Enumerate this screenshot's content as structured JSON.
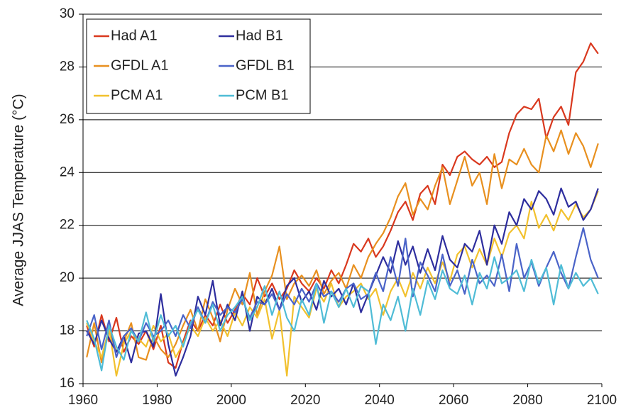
{
  "chart_data": {
    "type": "line",
    "y_label": "Average JJAS Temperature (°C)",
    "x": [
      1961,
      1963,
      1965,
      1967,
      1969,
      1971,
      1973,
      1975,
      1977,
      1979,
      1981,
      1983,
      1985,
      1987,
      1989,
      1991,
      1993,
      1995,
      1997,
      1999,
      2001,
      2003,
      2005,
      2007,
      2009,
      2011,
      2013,
      2015,
      2017,
      2019,
      2021,
      2023,
      2025,
      2027,
      2029,
      2031,
      2033,
      2035,
      2037,
      2039,
      2041,
      2043,
      2045,
      2047,
      2049,
      2051,
      2053,
      2055,
      2057,
      2059,
      2061,
      2063,
      2065,
      2067,
      2069,
      2071,
      2073,
      2075,
      2077,
      2079,
      2081,
      2083,
      2085,
      2087,
      2089,
      2091,
      2093,
      2095,
      2097,
      2099
    ],
    "series": [
      {
        "name": "Had A1",
        "color": "#d9381e",
        "values": [
          18.2,
          17.4,
          18.6,
          17.6,
          18.5,
          17.2,
          17.8,
          17.5,
          18.0,
          17.3,
          18.2,
          16.8,
          16.6,
          17.6,
          18.4,
          18.0,
          18.6,
          18.2,
          19.0,
          18.3,
          18.8,
          19.4,
          19.0,
          20.0,
          19.3,
          19.8,
          19.2,
          19.6,
          20.3,
          19.8,
          19.5,
          20.0,
          19.6,
          20.3,
          19.8,
          20.5,
          21.3,
          21.0,
          21.5,
          20.8,
          21.2,
          21.8,
          22.5,
          22.9,
          22.2,
          23.2,
          23.5,
          22.8,
          24.3,
          23.9,
          24.6,
          24.8,
          24.5,
          24.3,
          24.6,
          24.2,
          24.4,
          25.5,
          26.2,
          26.5,
          26.4,
          26.8,
          25.3,
          26.1,
          26.5,
          25.8,
          27.8,
          28.2,
          28.9,
          28.5
        ]
      },
      {
        "name": "GFDL A1",
        "color": "#e8901f",
        "values": [
          17.0,
          18.3,
          16.8,
          18.0,
          17.2,
          17.6,
          18.3,
          17.0,
          16.9,
          17.8,
          17.3,
          17.0,
          17.5,
          18.2,
          18.8,
          18.0,
          19.2,
          18.5,
          17.6,
          18.8,
          19.6,
          19.0,
          20.2,
          18.6,
          19.5,
          20.1,
          21.2,
          19.2,
          19.8,
          20.1,
          19.7,
          20.3,
          19.4,
          19.9,
          20.2,
          19.6,
          20.5,
          20.0,
          20.8,
          21.3,
          21.7,
          22.3,
          23.1,
          23.6,
          22.4,
          23.0,
          22.6,
          23.5,
          24.2,
          22.8,
          23.7,
          24.6,
          23.5,
          24.0,
          22.8,
          24.7,
          23.4,
          24.5,
          24.3,
          24.9,
          24.3,
          24.0,
          25.4,
          24.8,
          25.6,
          24.7,
          25.5,
          25.0,
          24.2,
          25.1
        ]
      },
      {
        "name": "PCM A1",
        "color": "#f2c12e",
        "values": [
          18.3,
          17.6,
          17.0,
          18.1,
          16.3,
          17.5,
          18.0,
          17.7,
          17.4,
          18.2,
          17.6,
          17.9,
          17.0,
          17.5,
          18.2,
          17.8,
          18.5,
          18.0,
          18.4,
          17.8,
          18.7,
          18.2,
          18.9,
          18.5,
          19.2,
          17.7,
          18.8,
          16.3,
          19.3,
          18.9,
          18.5,
          19.6,
          19.1,
          19.8,
          18.9,
          19.3,
          19.5,
          19.8,
          19.2,
          19.6,
          18.6,
          19.5,
          20.0,
          19.3,
          20.2,
          19.6,
          20.4,
          19.8,
          20.6,
          19.9,
          20.9,
          21.2,
          20.4,
          21.1,
          20.5,
          21.5,
          20.8,
          21.7,
          22.0,
          21.5,
          22.9,
          21.9,
          22.4,
          21.8,
          22.6,
          22.2,
          22.8,
          22.3,
          22.6,
          23.3
        ]
      },
      {
        "name": "Had B1",
        "color": "#2e2e9e",
        "values": [
          18.0,
          17.5,
          18.4,
          17.7,
          17.2,
          17.8,
          16.8,
          17.9,
          18.0,
          17.4,
          19.4,
          17.5,
          16.3,
          17.0,
          17.8,
          19.3,
          18.6,
          19.9,
          18.2,
          19.0,
          18.4,
          19.5,
          18.0,
          19.3,
          19.0,
          19.6,
          18.8,
          19.7,
          20.0,
          19.1,
          19.5,
          18.8,
          19.9,
          19.3,
          19.6,
          19.0,
          19.8,
          18.7,
          19.4,
          20.1,
          20.8,
          20.2,
          21.4,
          20.5,
          21.2,
          20.2,
          21.1,
          20.3,
          21.6,
          20.7,
          20.4,
          21.3,
          21.0,
          21.8,
          20.5,
          22.0,
          21.3,
          22.5,
          22.0,
          23.0,
          22.6,
          23.3,
          23.0,
          22.4,
          23.4,
          22.7,
          22.9,
          22.2,
          22.6,
          23.4
        ]
      },
      {
        "name": "GFDL B1",
        "color": "#4a63c8",
        "values": [
          17.8,
          18.6,
          17.3,
          18.4,
          17.0,
          17.8,
          18.1,
          17.6,
          18.3,
          17.8,
          18.0,
          18.4,
          17.8,
          18.6,
          18.1,
          18.9,
          18.3,
          19.1,
          18.6,
          18.9,
          18.7,
          19.2,
          18.5,
          19.1,
          19.0,
          19.4,
          18.8,
          19.4,
          19.0,
          19.6,
          19.1,
          19.8,
          19.3,
          19.5,
          19.1,
          19.6,
          19.8,
          19.2,
          19.4,
          20.2,
          19.5,
          20.8,
          19.7,
          21.5,
          19.3,
          20.6,
          20.1,
          19.5,
          20.9,
          19.7,
          20.3,
          19.4,
          20.7,
          19.8,
          20.1,
          19.7,
          20.9,
          19.5,
          21.3,
          20.0,
          20.6,
          19.7,
          20.4,
          21.0,
          20.2,
          19.6,
          20.8,
          21.9,
          20.7,
          20.0
        ]
      },
      {
        "name": "PCM B1",
        "color": "#4fbcd6",
        "values": [
          18.4,
          17.7,
          16.5,
          18.2,
          17.4,
          16.9,
          18.0,
          17.6,
          18.7,
          17.6,
          18.6,
          17.8,
          18.2,
          17.4,
          18.3,
          18.8,
          18.3,
          19.0,
          18.0,
          18.6,
          18.9,
          19.3,
          18.4,
          18.9,
          19.7,
          18.6,
          19.5,
          18.5,
          18.0,
          19.2,
          18.6,
          19.8,
          18.3,
          19.5,
          18.9,
          19.6,
          18.9,
          19.7,
          19.5,
          17.5,
          19.0,
          18.4,
          19.3,
          18.0,
          19.6,
          18.6,
          19.9,
          19.2,
          20.3,
          19.6,
          19.4,
          20.1,
          19.0,
          20.2,
          19.6,
          20.8,
          19.8,
          20.0,
          20.3,
          19.5,
          20.7,
          19.8,
          20.4,
          19.0,
          20.5,
          19.6,
          20.2,
          19.7,
          20.0,
          19.4
        ]
      }
    ],
    "xlim": [
      1960,
      2100
    ],
    "xticks": [
      1960,
      1980,
      2000,
      2020,
      2040,
      2060,
      2080,
      2100
    ],
    "ylim": [
      16,
      30
    ],
    "yticks": [
      16,
      18,
      20,
      22,
      24,
      26,
      28,
      30
    ],
    "grid": true,
    "legend": "upper left"
  }
}
